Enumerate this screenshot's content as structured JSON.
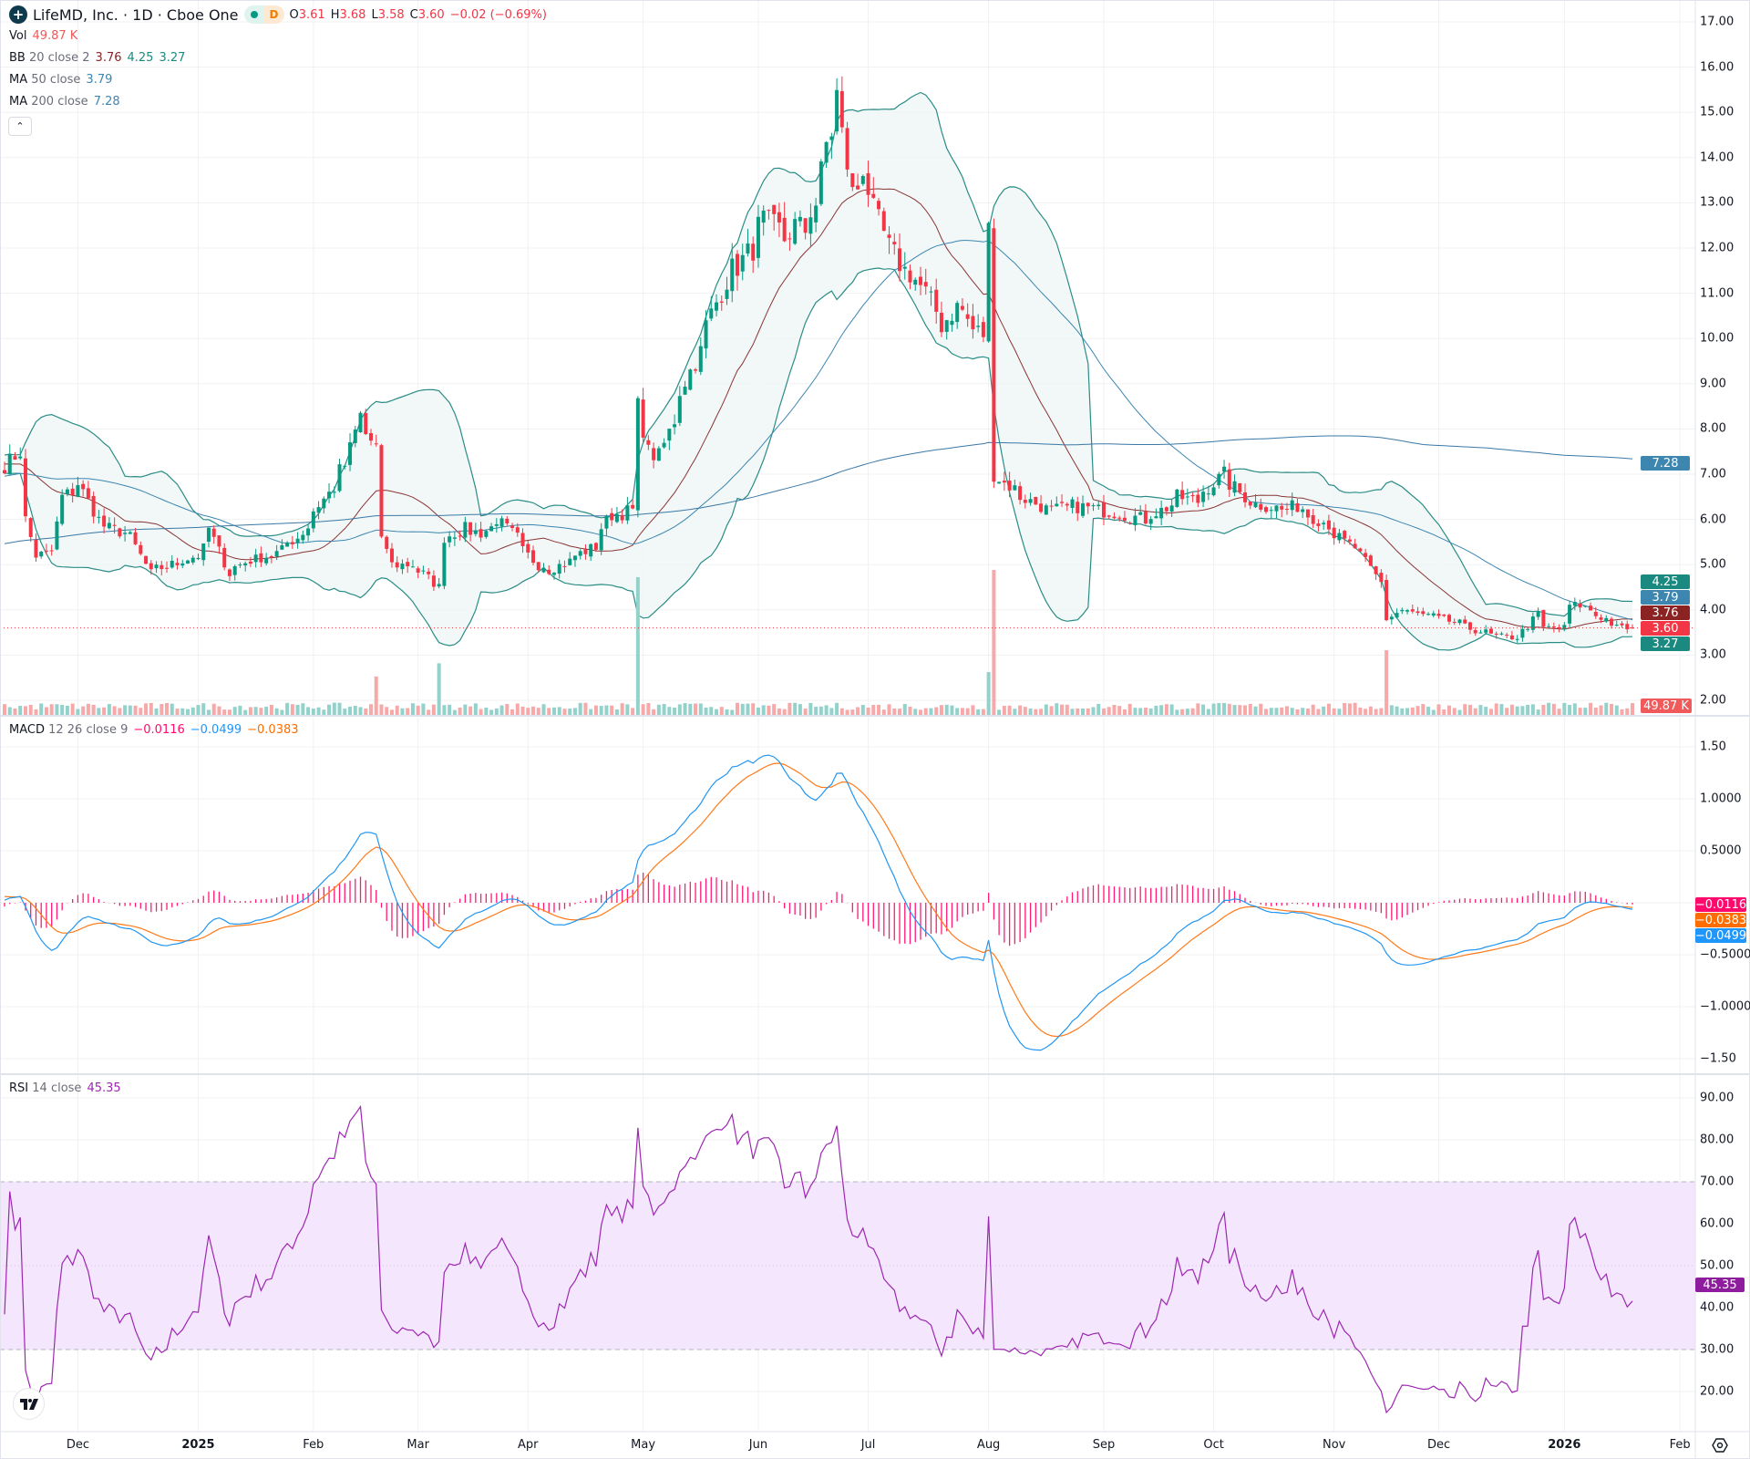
{
  "header": {
    "symbol_title": "LifeMD, Inc. · 1D · Cboe One",
    "market_status": "D",
    "ohlc": {
      "o_label": "O",
      "o": "3.61",
      "h_label": "H",
      "h": "3.68",
      "l_label": "L",
      "l": "3.58",
      "c_label": "C",
      "c": "3.60",
      "change": "−0.02 (−0.69%)"
    }
  },
  "legends": {
    "vol": {
      "name": "Vol",
      "value": "49.87 K"
    },
    "bb": {
      "name": "BB",
      "params": "20 close 2",
      "basis": "3.76",
      "upper": "4.25",
      "lower": "3.27"
    },
    "ma50": {
      "name": "MA",
      "params": "50 close",
      "value": "3.79"
    },
    "ma200": {
      "name": "MA",
      "params": "200 close",
      "value": "7.28"
    },
    "macd": {
      "name": "MACD",
      "params": "12 26 close 9",
      "hist": "−0.0116",
      "macd": "−0.0499",
      "signal": "−0.0383"
    },
    "rsi": {
      "name": "RSI",
      "params": "14 close",
      "value": "45.35"
    }
  },
  "colors": {
    "up": "#089981",
    "down": "#f23645",
    "bb_band": "#2a8c86",
    "bb_basis": "#8b3434",
    "ma50": "#3d86b0",
    "ma200": "#3a78a6",
    "macd": "#2196f3",
    "signal": "#ff7a1a",
    "hist": "#ff1a75",
    "rsi": "#9c27b0",
    "rsi_fill": "#f4e6fd"
  },
  "price_axis": {
    "ticks": [
      "17.00",
      "16.00",
      "15.00",
      "14.00",
      "13.00",
      "12.00",
      "11.00",
      "10.00",
      "9.00",
      "8.00",
      "7.00",
      "6.00",
      "5.00",
      "4.00",
      "3.00",
      "2.00"
    ],
    "badges": [
      {
        "label": "7.28",
        "value": 7.28,
        "color": "#3d86b0"
      },
      {
        "label": "4.25",
        "value": 4.25,
        "color": "#1a8a80"
      },
      {
        "label": "3.79",
        "value": 3.79,
        "color": "#3d86b0"
      },
      {
        "label": "3.76",
        "value": 3.76,
        "color": "#8b2323"
      },
      {
        "label": "3.60",
        "value": 3.6,
        "color": "#f23645"
      },
      {
        "label": "3.27",
        "value": 3.27,
        "color": "#1a8a80"
      }
    ],
    "volume_badge": {
      "label": "49.87 K",
      "color": "#f05a5a"
    }
  },
  "macd_axis": {
    "ticks": [
      {
        "label": "1.50",
        "value": 1.5
      },
      {
        "label": "1.0000",
        "value": 1.0
      },
      {
        "label": "0.5000",
        "value": 0.5
      },
      {
        "label": "−0.5000",
        "value": -0.5
      },
      {
        "label": "−1.0000",
        "value": -1.0
      },
      {
        "label": "−1.50",
        "value": -1.5
      }
    ],
    "badges": [
      {
        "label": "−0.0116",
        "color": "#ff0a6c"
      },
      {
        "label": "−0.0383",
        "color": "#ff6d00"
      },
      {
        "label": "−0.0499",
        "color": "#1e96fc"
      }
    ]
  },
  "rsi_axis": {
    "ticks": [
      "90.00",
      "80.00",
      "70.00",
      "60.00",
      "50.00",
      "40.00",
      "30.00",
      "20.00"
    ],
    "overbought": 70,
    "oversold": 30,
    "badge": {
      "label": "45.35",
      "value": 45.35,
      "color": "#8e1d9e"
    }
  },
  "time_axis": [
    {
      "label": "Dec",
      "bold": false
    },
    {
      "label": "2025",
      "bold": true
    },
    {
      "label": "Feb",
      "bold": false
    },
    {
      "label": "Mar",
      "bold": false
    },
    {
      "label": "Apr",
      "bold": false
    },
    {
      "label": "May",
      "bold": false
    },
    {
      "label": "Jun",
      "bold": false
    },
    {
      "label": "Jul",
      "bold": false
    },
    {
      "label": "Aug",
      "bold": false
    },
    {
      "label": "Sep",
      "bold": false
    },
    {
      "label": "Oct",
      "bold": false
    },
    {
      "label": "Nov",
      "bold": false
    },
    {
      "label": "Dec",
      "bold": false
    },
    {
      "label": "2026",
      "bold": true
    },
    {
      "label": "Feb",
      "bold": false
    }
  ],
  "chart_data": {
    "type": "candlestick",
    "interval": "1D",
    "price_range": [
      2,
      17
    ],
    "macd_range": [
      -1.5,
      1.5
    ],
    "rsi_range": [
      15,
      92
    ],
    "grid": true,
    "last_bar": {
      "open": 3.61,
      "high": 3.68,
      "low": 3.58,
      "close": 3.6
    },
    "close_path": [
      [
        "2024-11-12",
        7.2
      ],
      [
        "2024-11-15",
        7.5
      ],
      [
        "2024-11-18",
        6.0
      ],
      [
        "2024-11-20",
        5.2
      ],
      [
        "2024-11-25",
        5.3
      ],
      [
        "2024-11-27",
        6.5
      ],
      [
        "2024-12-02",
        6.8
      ],
      [
        "2024-12-06",
        6.0
      ],
      [
        "2024-12-10",
        5.8
      ],
      [
        "2024-12-16",
        5.6
      ],
      [
        "2024-12-20",
        4.8
      ],
      [
        "2024-12-26",
        5.0
      ],
      [
        "2025-01-02",
        5.2
      ],
      [
        "2025-01-06",
        5.8
      ],
      [
        "2025-01-10",
        4.8
      ],
      [
        "2025-01-16",
        5.1
      ],
      [
        "2025-01-22",
        5.2
      ],
      [
        "2025-01-29",
        5.6
      ],
      [
        "2025-02-03",
        6.2
      ],
      [
        "2025-02-07",
        6.7
      ],
      [
        "2025-02-11",
        7.2
      ],
      [
        "2025-02-14",
        8.3
      ],
      [
        "2025-02-19",
        7.6
      ],
      [
        "2025-02-20",
        5.5
      ],
      [
        "2025-02-24",
        5.0
      ],
      [
        "2025-02-28",
        5.0
      ],
      [
        "2025-03-04",
        4.8
      ],
      [
        "2025-03-07",
        4.5
      ],
      [
        "2025-03-10",
        5.6
      ],
      [
        "2025-03-14",
        5.8
      ],
      [
        "2025-03-19",
        5.7
      ],
      [
        "2025-03-24",
        6.0
      ],
      [
        "2025-03-31",
        5.3
      ],
      [
        "2025-04-03",
        5.0
      ],
      [
        "2025-04-07",
        4.9
      ],
      [
        "2025-04-14",
        5.2
      ],
      [
        "2025-04-18",
        5.4
      ],
      [
        "2025-04-23",
        6.1
      ],
      [
        "2025-04-29",
        6.2
      ],
      [
        "2025-04-30",
        8.5
      ],
      [
        "2025-05-02",
        7.5
      ],
      [
        "2025-05-06",
        7.4
      ],
      [
        "2025-05-09",
        8.2
      ],
      [
        "2025-05-15",
        9.5
      ],
      [
        "2025-05-19",
        10.3
      ],
      [
        "2025-05-21",
        10.8
      ],
      [
        "2025-05-23",
        11.3
      ],
      [
        "2025-05-27",
        11.6
      ],
      [
        "2025-05-30",
        12.0
      ],
      [
        "2025-06-03",
        12.6
      ],
      [
        "2025-06-09",
        12.2
      ],
      [
        "2025-06-11",
        12.5
      ],
      [
        "2025-06-13",
        12.4
      ],
      [
        "2025-06-17",
        13.0
      ],
      [
        "2025-06-19",
        14.3
      ],
      [
        "2025-06-23",
        15.4
      ],
      [
        "2025-06-24",
        14.5
      ],
      [
        "2025-06-26",
        13.2
      ],
      [
        "2025-06-30",
        13.8
      ],
      [
        "2025-07-02",
        12.8
      ],
      [
        "2025-07-04",
        12.3
      ],
      [
        "2025-07-07",
        12.0
      ],
      [
        "2025-07-10",
        11.5
      ],
      [
        "2025-07-14",
        11.3
      ],
      [
        "2025-07-16",
        11.0
      ],
      [
        "2025-07-18",
        10.6
      ],
      [
        "2025-07-21",
        10.3
      ],
      [
        "2025-07-24",
        10.7
      ],
      [
        "2025-07-28",
        10.4
      ],
      [
        "2025-07-29",
        10.2
      ],
      [
        "2025-07-31",
        10.1
      ],
      [
        "2025-08-01",
        12.4
      ],
      [
        "2025-08-04",
        7.0
      ],
      [
        "2025-08-06",
        6.8
      ],
      [
        "2025-08-11",
        6.5
      ],
      [
        "2025-08-15",
        6.3
      ],
      [
        "2025-08-19",
        6.2
      ],
      [
        "2025-08-25",
        6.3
      ],
      [
        "2025-09-01",
        6.2
      ],
      [
        "2025-09-08",
        6.1
      ],
      [
        "2025-09-12",
        6.0
      ],
      [
        "2025-09-17",
        6.2
      ],
      [
        "2025-09-22",
        6.5
      ],
      [
        "2025-09-26",
        6.4
      ],
      [
        "2025-10-01",
        6.8
      ],
      [
        "2025-10-03",
        7.0
      ],
      [
        "2025-10-07",
        6.7
      ],
      [
        "2025-10-10",
        6.4
      ],
      [
        "2025-10-15",
        6.3
      ],
      [
        "2025-10-20",
        6.2
      ],
      [
        "2025-10-23",
        6.3
      ],
      [
        "2025-10-27",
        6.1
      ],
      [
        "2025-10-31",
        5.9
      ],
      [
        "2025-11-05",
        5.5
      ],
      [
        "2025-11-10",
        5.2
      ],
      [
        "2025-11-14",
        4.6
      ],
      [
        "2025-11-17",
        3.8
      ],
      [
        "2025-11-20",
        4.0
      ],
      [
        "2025-11-25",
        3.9
      ],
      [
        "2025-12-01",
        3.8
      ],
      [
        "2025-12-05",
        3.7
      ],
      [
        "2025-12-12",
        3.5
      ],
      [
        "2025-12-17",
        3.4
      ],
      [
        "2025-12-22",
        3.4
      ],
      [
        "2025-12-26",
        3.9
      ],
      [
        "2025-12-29",
        3.6
      ],
      [
        "2026-01-02",
        3.6
      ],
      [
        "2026-01-05",
        4.1
      ],
      [
        "2026-01-07",
        4.1
      ],
      [
        "2026-01-09",
        4.0
      ],
      [
        "2026-01-14",
        3.8
      ],
      [
        "2026-01-16",
        3.6
      ],
      [
        "2026-01-21",
        3.6
      ]
    ],
    "volume_highlights": [
      {
        "date": "2025-02-19",
        "relative_volume": 0.27
      },
      {
        "date": "2025-03-07",
        "relative_volume": 0.36
      },
      {
        "date": "2025-04-30",
        "relative_volume": 0.95
      },
      {
        "date": "2025-08-01",
        "relative_volume": 0.3
      },
      {
        "date": "2025-08-04",
        "relative_volume": 1.0
      },
      {
        "date": "2025-11-17",
        "relative_volume": 0.45
      }
    ]
  }
}
